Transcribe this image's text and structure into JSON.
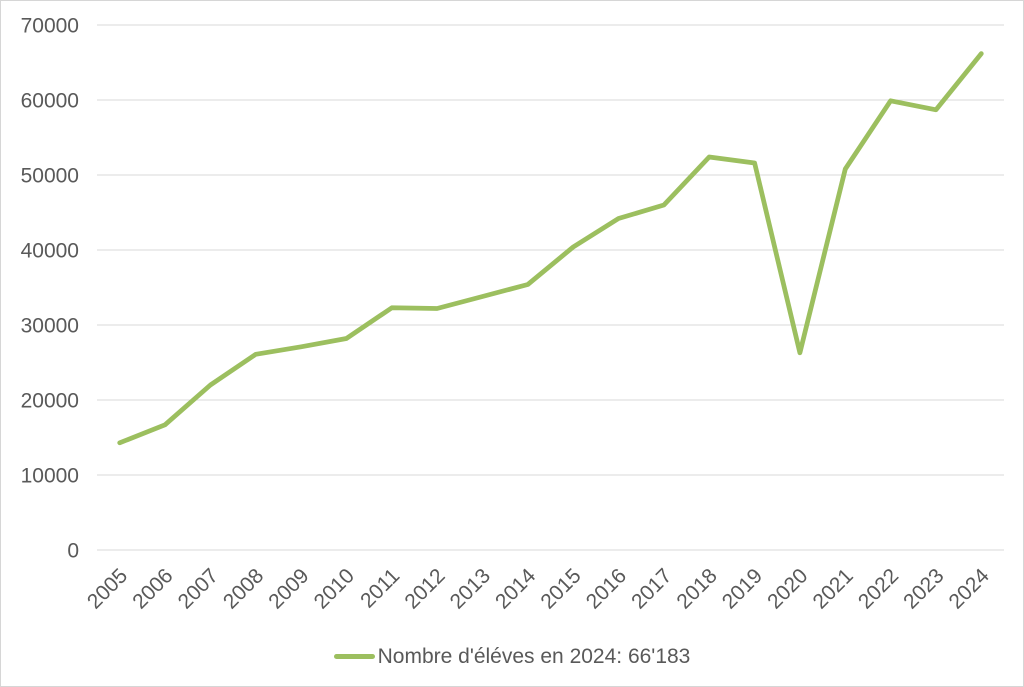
{
  "chart_data": {
    "type": "line",
    "title": "",
    "xlabel": "",
    "ylabel": "",
    "categories": [
      "2005",
      "2006",
      "2007",
      "2008",
      "2009",
      "2010",
      "2011",
      "2012",
      "2013",
      "2014",
      "2015",
      "2016",
      "2017",
      "2018",
      "2019",
      "2020",
      "2021",
      "2022",
      "2023",
      "2024"
    ],
    "series": [
      {
        "name": "Nombre d'éléves en 2024: 66'183",
        "values": [
          14300,
          16700,
          22000,
          26100,
          27100,
          28200,
          32300,
          32200,
          33800,
          35400,
          40400,
          44200,
          46000,
          52400,
          51600,
          26300,
          50800,
          59900,
          58700,
          66183
        ]
      }
    ],
    "ylim": [
      0,
      70000
    ],
    "yticks": [
      0,
      10000,
      20000,
      30000,
      40000,
      50000,
      60000,
      70000
    ],
    "ytick_labels": [
      "0",
      "10000",
      "20000",
      "30000",
      "40000",
      "50000",
      "60000",
      "70000"
    ],
    "grid": "horizontal",
    "legend_position": "bottom-center",
    "legend_label": "Nombre d'éléves en 2024: 66'183",
    "highlight_value_2024": "66'183",
    "colors": {
      "series_line": "#9cbf5f",
      "gridline": "#d9d9d9",
      "text": "#595959",
      "background": "#ffffff",
      "border": "#d6d6d6"
    }
  }
}
